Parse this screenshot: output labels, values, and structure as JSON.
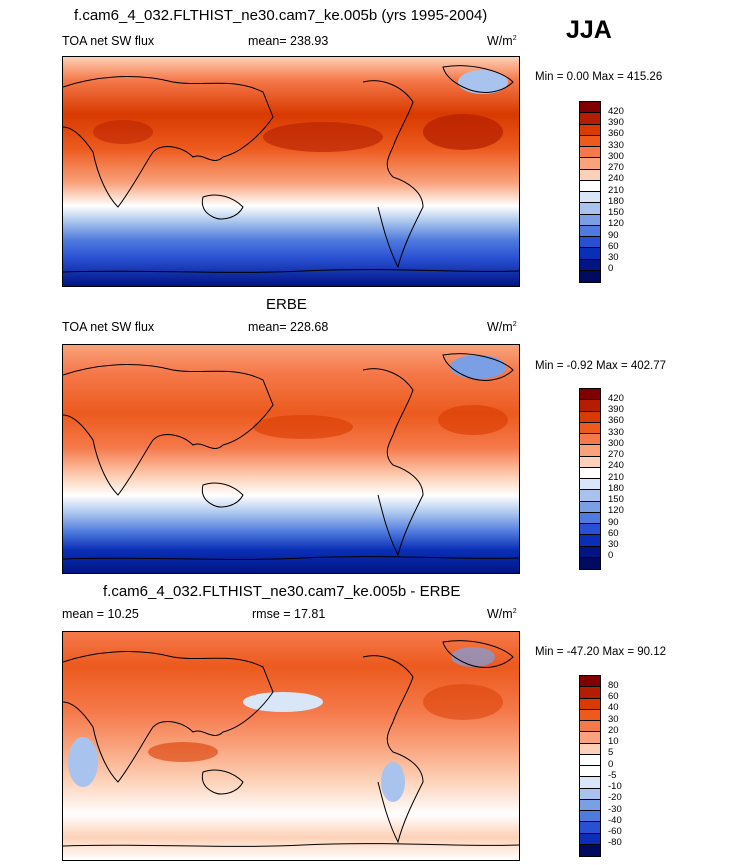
{
  "season": "JJA",
  "panels": [
    {
      "title": "f.cam6_4_032.FLTHIST_ne30.cam7_ke.005b (yrs 1995-2004)",
      "left_label": "TOA net SW flux",
      "stat_label": "mean= 238.93",
      "units_base": "W/m",
      "units_sup": "2",
      "minmax": "Min =   0.00 Max = 415.26",
      "levels": [
        "420",
        "390",
        "360",
        "330",
        "300",
        "270",
        "240",
        "210",
        "180",
        "150",
        "120",
        "90",
        "60",
        "30",
        "0"
      ],
      "colors": [
        "#800000",
        "#b41e00",
        "#d83a00",
        "#ec5a1e",
        "#f5794a",
        "#f9a27c",
        "#fdd1b7",
        "#ffffff",
        "#d9e6f8",
        "#a8c4ee",
        "#7a9fe4",
        "#4f7ade",
        "#2950d2",
        "#0a2fb6",
        "#001484",
        "#000a5e"
      ]
    },
    {
      "title": "ERBE",
      "left_label": "TOA net SW flux",
      "stat_label": "mean= 228.68",
      "units_base": "W/m",
      "units_sup": "2",
      "minmax": "Min =  -0.92 Max = 402.77",
      "levels": [
        "420",
        "390",
        "360",
        "330",
        "300",
        "270",
        "240",
        "210",
        "180",
        "150",
        "120",
        "90",
        "60",
        "30",
        "0"
      ],
      "colors": [
        "#800000",
        "#b41e00",
        "#d83a00",
        "#ec5a1e",
        "#f5794a",
        "#f9a27c",
        "#fdd1b7",
        "#ffffff",
        "#d9e6f8",
        "#a8c4ee",
        "#7a9fe4",
        "#4f7ade",
        "#2950d2",
        "#0a2fb6",
        "#001484",
        "#000a5e"
      ]
    },
    {
      "title": "f.cam6_4_032.FLTHIST_ne30.cam7_ke.005b - ERBE",
      "left_label": "mean =  10.25",
      "stat_label": "rmse =  17.81",
      "units_base": "W/m",
      "units_sup": "2",
      "minmax": "Min = -47.20 Max =  90.12",
      "levels": [
        "80",
        "60",
        "40",
        "30",
        "20",
        "10",
        "5",
        "0",
        "-5",
        "-10",
        "-20",
        "-30",
        "-40",
        "-60",
        "-80"
      ],
      "colors": [
        "#800000",
        "#b41e00",
        "#d83a00",
        "#ec5a1e",
        "#f5794a",
        "#f9a27c",
        "#fdd1b7",
        "#ffffff",
        "#ffffff",
        "#d9e6f8",
        "#a8c4ee",
        "#7a9fe4",
        "#4f7ade",
        "#2950d2",
        "#0a2fb6",
        "#000a5e"
      ]
    }
  ]
}
